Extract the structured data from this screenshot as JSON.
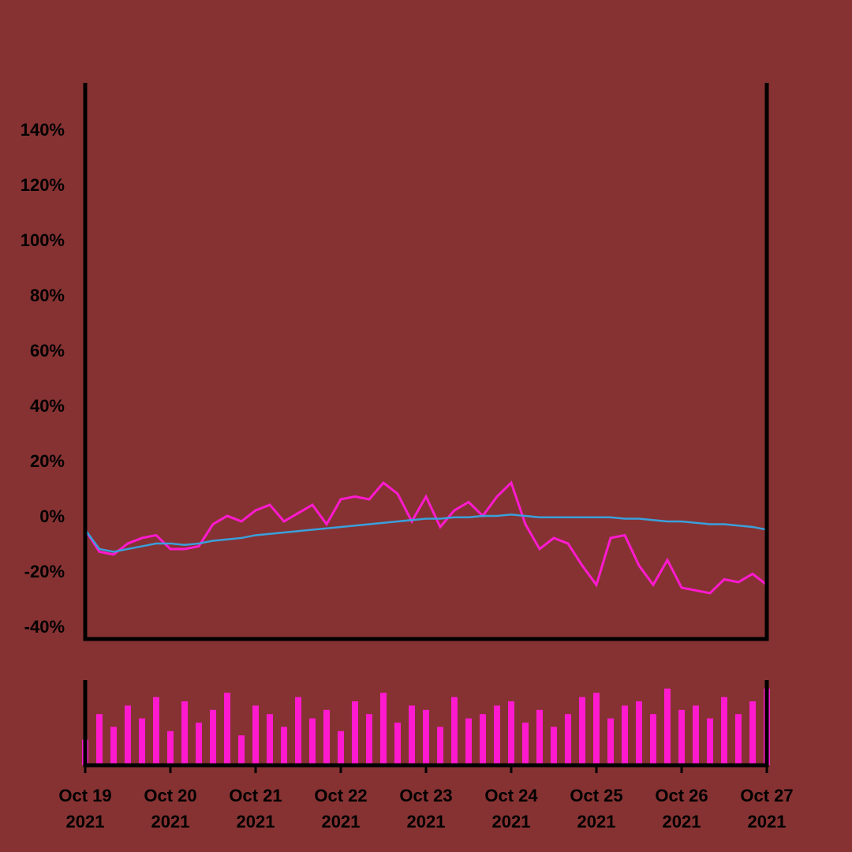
{
  "chart_data": [
    {
      "type": "line",
      "x": [
        0,
        4,
        8,
        12,
        16,
        20,
        24,
        28,
        32,
        36,
        40,
        44,
        48,
        52,
        56,
        60,
        64,
        68,
        72,
        76,
        80,
        84,
        88,
        92,
        96,
        100,
        104,
        108,
        112,
        116,
        120,
        124,
        128,
        132,
        136,
        140,
        144,
        148,
        152,
        156,
        160,
        164,
        168,
        172,
        176,
        180,
        184,
        188,
        192
      ],
      "series": [
        {
          "color": "#ff1ad0",
          "values": [
            -5,
            -13,
            -14,
            -10,
            -8,
            -7,
            -12,
            -12,
            -11,
            -3,
            0,
            -2,
            2,
            4,
            -2,
            1,
            4,
            -3,
            6,
            7,
            6,
            12,
            8,
            -2,
            7,
            -4,
            2,
            5,
            0,
            7,
            12,
            -3,
            -12,
            -8,
            -10,
            -18,
            -25,
            -8,
            -7,
            -18,
            -25,
            -16,
            -26,
            -27,
            -28,
            -23,
            -24,
            -21,
            -25
          ]
        },
        {
          "color": "#3aa0dc",
          "values": [
            -5,
            -12,
            -13,
            -12,
            -11,
            -10,
            -10,
            -10.5,
            -10,
            -9,
            -8.5,
            -8,
            -7,
            -6.5,
            -6,
            -5.5,
            -5,
            -4.5,
            -4,
            -3.5,
            -3,
            -2.5,
            -2,
            -1.5,
            -1,
            -1,
            -0.5,
            -0.5,
            0,
            0,
            0.5,
            0,
            -0.5,
            -0.5,
            -0.5,
            -0.5,
            -0.5,
            -0.5,
            -1,
            -1,
            -1.5,
            -2,
            -2,
            -2.5,
            -3,
            -3,
            -3.5,
            -4,
            -5
          ]
        }
      ],
      "xlim": [
        0,
        192
      ],
      "xticks": [
        {
          "value": 0,
          "label": "Oct 19\n2021"
        },
        {
          "value": 24,
          "label": "Oct 20\n2021"
        },
        {
          "value": 48,
          "label": "Oct 21\n2021"
        },
        {
          "value": 72,
          "label": "Oct 22\n2021"
        },
        {
          "value": 96,
          "label": "Oct 23\n2021"
        },
        {
          "value": 120,
          "label": "Oct 24\n2021"
        },
        {
          "value": 144,
          "label": "Oct 25\n2021"
        },
        {
          "value": 168,
          "label": "Oct 26\n2021"
        },
        {
          "value": 192,
          "label": "Oct 27\n2021"
        }
      ],
      "ylim": [
        -44.6,
        156.9
      ],
      "yticks": [
        {
          "value": -40,
          "label": "-40%"
        },
        {
          "value": -20,
          "label": "-20%"
        },
        {
          "value": 0,
          "label": "0%"
        },
        {
          "value": 20,
          "label": "20%"
        },
        {
          "value": 40,
          "label": "40%"
        },
        {
          "value": 60,
          "label": "60%"
        },
        {
          "value": 80,
          "label": "80%"
        },
        {
          "value": 100,
          "label": "100%"
        },
        {
          "value": 120,
          "label": "120%"
        },
        {
          "value": 140,
          "label": "140%"
        }
      ]
    },
    {
      "type": "bar",
      "color": "#ff1ad0",
      "x": [
        0,
        4,
        8,
        12,
        16,
        20,
        24,
        28,
        32,
        36,
        40,
        44,
        48,
        52,
        56,
        60,
        64,
        68,
        72,
        76,
        80,
        84,
        88,
        92,
        96,
        100,
        104,
        108,
        112,
        116,
        120,
        124,
        128,
        132,
        136,
        140,
        144,
        148,
        152,
        156,
        160,
        164,
        168,
        172,
        176,
        180,
        184,
        188,
        192
      ],
      "values": [
        30,
        60,
        45,
        70,
        55,
        80,
        40,
        75,
        50,
        65,
        85,
        35,
        70,
        60,
        45,
        80,
        55,
        65,
        40,
        75,
        60,
        85,
        50,
        70,
        65,
        45,
        80,
        55,
        60,
        70,
        75,
        50,
        65,
        45,
        60,
        80,
        85,
        55,
        70,
        75,
        60,
        90,
        65,
        70,
        55,
        80,
        60,
        75,
        90
      ],
      "xlim": [
        0,
        192
      ],
      "ylim": [
        0,
        100
      ]
    }
  ]
}
